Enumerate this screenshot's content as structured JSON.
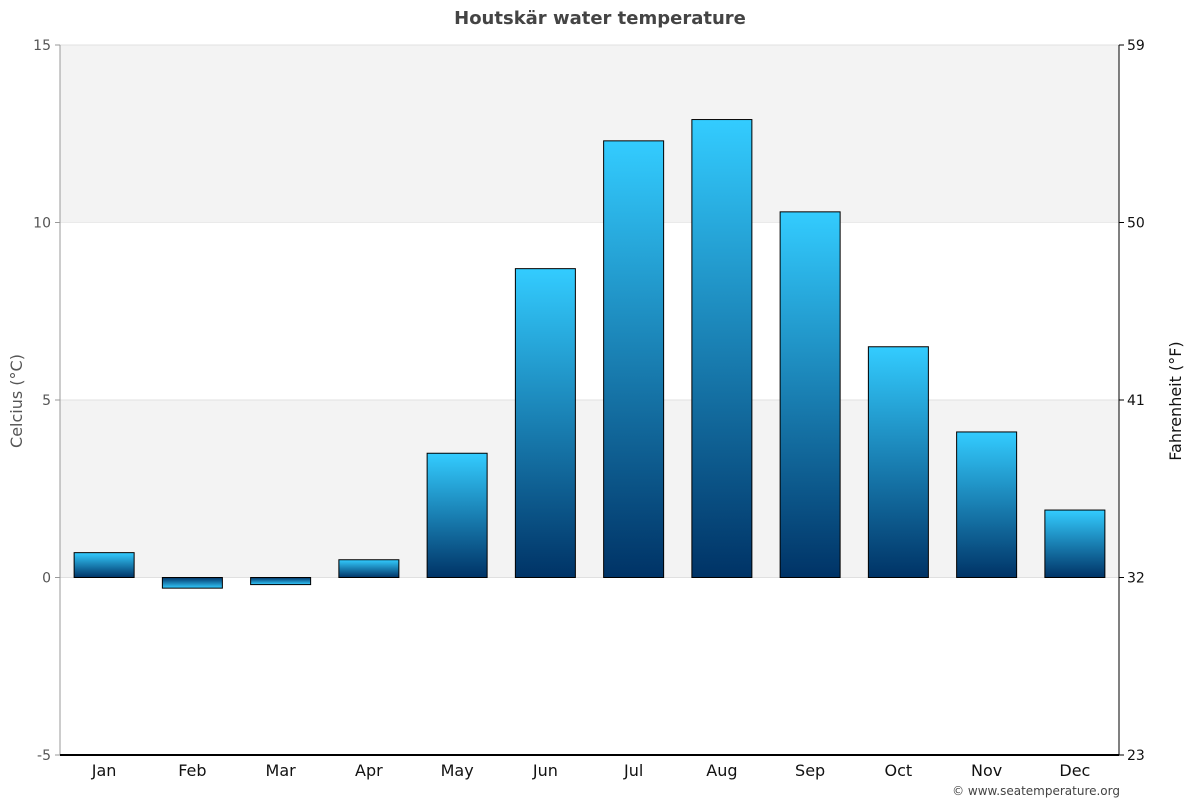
{
  "chart_data": {
    "type": "bar",
    "title": "Houtskär water temperature",
    "categories": [
      "Jan",
      "Feb",
      "Mar",
      "Apr",
      "May",
      "Jun",
      "Jul",
      "Aug",
      "Sep",
      "Oct",
      "Nov",
      "Dec"
    ],
    "values": [
      0.7,
      -0.3,
      -0.2,
      0.5,
      3.5,
      8.7,
      12.3,
      12.9,
      10.3,
      6.5,
      4.1,
      1.9
    ],
    "ylabel": "Celcius (°C)",
    "ylabel_right": "Fahrenheit (°F)",
    "ylim": [
      -5,
      15
    ],
    "yticks": [
      -5,
      0,
      5,
      10,
      15
    ],
    "yticks_right": [
      23,
      32,
      41,
      50,
      59
    ],
    "grid": true,
    "colors": {
      "bar_top": "#33ccff",
      "bar_bottom": "#003366",
      "band": "#f3f3f3"
    }
  },
  "credit": "© www.seatemperature.org"
}
